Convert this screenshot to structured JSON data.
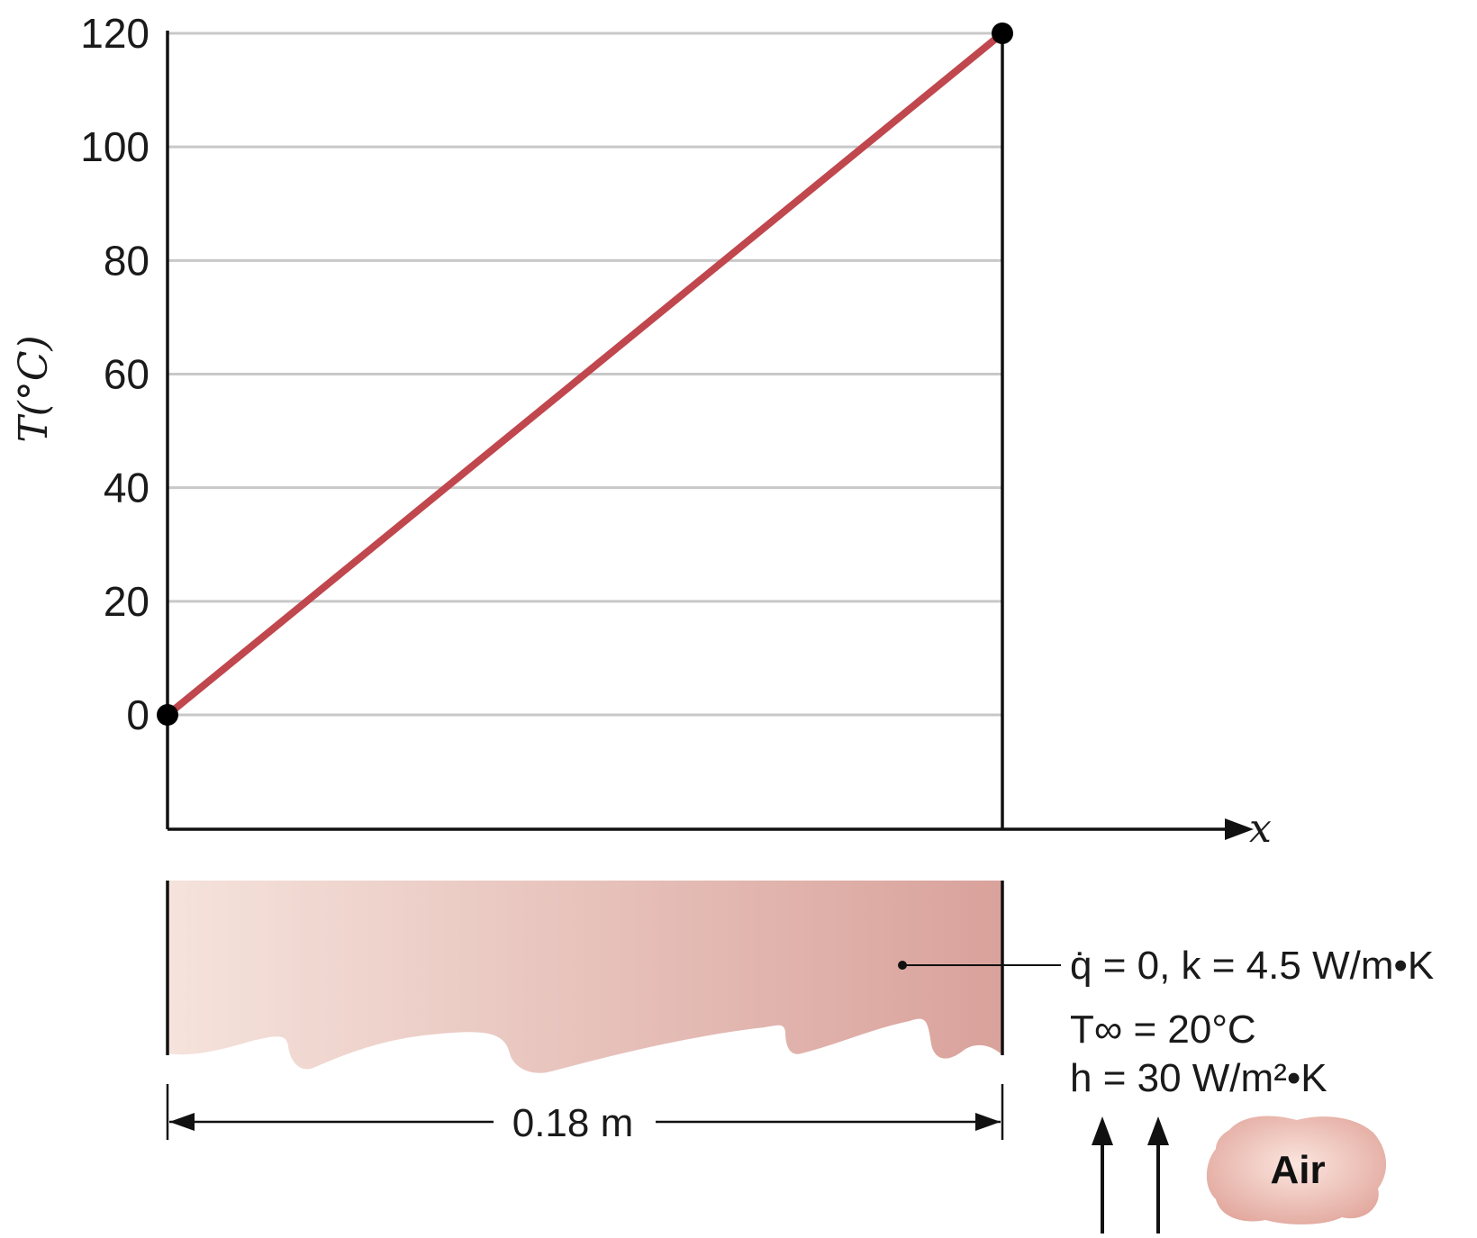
{
  "chart_data": {
    "type": "line",
    "ylabel": "T(°C)",
    "xlabel": "x",
    "yticks": [
      0,
      20,
      40,
      60,
      80,
      100,
      120
    ],
    "ylim": [
      -20,
      120
    ],
    "grid": true,
    "series": [
      {
        "x": [
          0,
          0.18
        ],
        "y": [
          0,
          120
        ],
        "color": "#c0474d"
      }
    ]
  },
  "slab": {
    "thickness_label": "0.18 m",
    "props_line": "q̇ = 0, k = 4.5 W/m•K",
    "tinf_label": "T∞ = 20°C",
    "h_label": "h = 30 W/m²•K",
    "air_label": "Air",
    "gradient_colors": [
      "#f5e3dc",
      "#d9a29b"
    ]
  },
  "colors": {
    "line": "#c0474d",
    "axis": "#111111",
    "grid": "#c8c8c8",
    "cloud": "#e9b5ab"
  }
}
